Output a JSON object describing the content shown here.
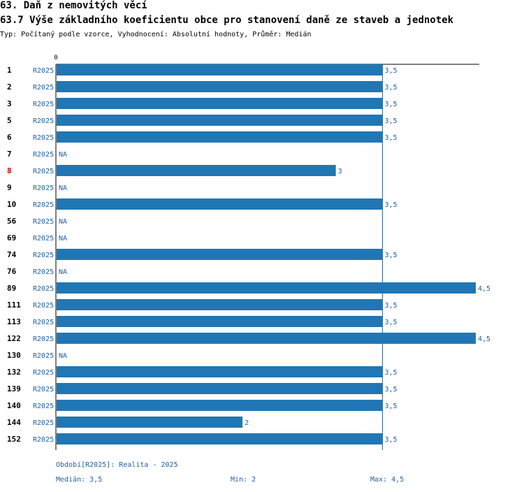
{
  "header": {
    "section_title": "63. Daň z nemovitých věcí",
    "chart_title": "63.7 Výše základního koeficientu obce pro stanovení daně ze staveb a jednotek",
    "subtitle": "Typ: Počítaný podle vzorce, Vyhodnocení: Absolutní hodnoty, Průměr: Medián"
  },
  "colors": {
    "bar": "#2077b4",
    "label_text": "#1f5fa5",
    "highlight": "#dd0000",
    "axis": "#000000",
    "median_line": "#1f5fa5"
  },
  "chart_data": {
    "type": "bar",
    "orientation": "horizontal",
    "axis_zero_label": "0",
    "period_label": "R2025",
    "highlighted_category": "8",
    "median": 3.5,
    "xlim": [
      0,
      4.5
    ],
    "categories": [
      "1",
      "2",
      "3",
      "5",
      "6",
      "7",
      "8",
      "9",
      "10",
      "56",
      "69",
      "74",
      "76",
      "89",
      "111",
      "113",
      "122",
      "130",
      "132",
      "139",
      "140",
      "144",
      "152"
    ],
    "values": [
      3.5,
      3.5,
      3.5,
      3.5,
      3.5,
      null,
      3,
      null,
      3.5,
      null,
      null,
      3.5,
      null,
      4.5,
      3.5,
      3.5,
      4.5,
      null,
      3.5,
      3.5,
      3.5,
      2,
      3.5
    ],
    "value_labels": [
      "3,5",
      "3,5",
      "3,5",
      "3,5",
      "3,5",
      "NA",
      "3",
      "NA",
      "3,5",
      "NA",
      "NA",
      "3,5",
      "NA",
      "4,5",
      "3,5",
      "3,5",
      "4,5",
      "NA",
      "3,5",
      "3,5",
      "3,5",
      "2",
      "3,5"
    ]
  },
  "footer": {
    "period_text": "Období[R2025]: Realita - 2025",
    "median_text": "Medián: 3,5",
    "min_text": "Min: 2",
    "max_text": "Max: 4,5"
  }
}
